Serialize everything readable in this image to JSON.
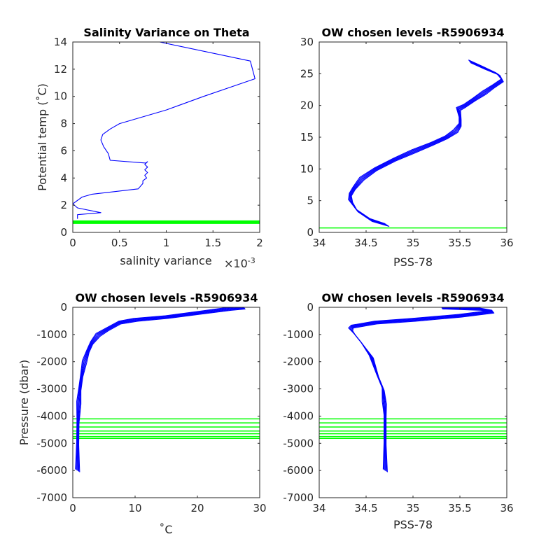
{
  "chart_data": [
    {
      "type": "line",
      "title": "Salinity Variance on Theta",
      "xlabel": "salinity variance",
      "xlabel_multiplier": "×10",
      "xlabel_multiplier_exp": "-3",
      "ylabel": "Potential temp (˚C)",
      "xlim": [
        0,
        2
      ],
      "ylim": [
        0,
        14
      ],
      "xticks": [
        "0",
        "0.5",
        "1",
        "1.5",
        "2"
      ],
      "yticks": [
        "0",
        "2",
        "4",
        "6",
        "8",
        "10",
        "12",
        "14"
      ],
      "line_color": "#0000ff",
      "series": [
        {
          "x": [
            0.05,
            0.05,
            0.3,
            0.05,
            0.0,
            0.1,
            0.2,
            0.45,
            0.7,
            0.75,
            0.75,
            0.79,
            0.77,
            0.8,
            0.77,
            0.8,
            0.77,
            0.8,
            0.78,
            0.4,
            0.38,
            0.33,
            0.3,
            0.32,
            0.4,
            0.5,
            1.0,
            1.4,
            1.95,
            1.9,
            0.93
          ],
          "y": [
            1.0,
            1.3,
            1.45,
            1.8,
            2.1,
            2.6,
            2.8,
            3.0,
            3.2,
            3.6,
            3.8,
            4.0,
            4.2,
            4.4,
            4.6,
            4.8,
            5.0,
            5.2,
            5.1,
            5.3,
            5.8,
            6.3,
            6.8,
            7.2,
            7.6,
            8.0,
            9.0,
            10.0,
            11.3,
            12.6,
            14.0
          ]
        }
      ],
      "hlines": [
        {
          "y": 0.75,
          "color": "#00ff00",
          "band": true
        }
      ]
    },
    {
      "type": "line",
      "title": "OW chosen levels -R5906934",
      "xlabel": "PSS-78",
      "ylabel": "",
      "xlim": [
        34,
        36
      ],
      "ylim": [
        0,
        30
      ],
      "xticks": [
        "34",
        "34.5",
        "35",
        "35.5",
        "36"
      ],
      "yticks": [
        "0",
        "5",
        "10",
        "15",
        "20",
        "25",
        "30"
      ],
      "line_color": "#0000ff",
      "series": [
        {
          "x": [
            34.72,
            34.55,
            34.4,
            34.33,
            34.33,
            34.37,
            34.45,
            34.6,
            34.8,
            35.0,
            35.2,
            35.35,
            35.45,
            35.5,
            35.5,
            35.48,
            35.55,
            35.65,
            35.75,
            35.85,
            35.95,
            35.9,
            35.75,
            35.6
          ],
          "y": [
            1.2,
            2.0,
            3.5,
            5.0,
            6.0,
            7.0,
            8.5,
            10.0,
            11.5,
            12.8,
            14.0,
            15.0,
            16.0,
            17.0,
            18.0,
            19.5,
            20.0,
            21.0,
            22.0,
            23.0,
            24.0,
            25.0,
            26.0,
            27.0
          ]
        }
      ],
      "hlines": [
        {
          "y": 0.7,
          "color": "#00ff00"
        }
      ]
    },
    {
      "type": "line",
      "title": "OW chosen levels -R5906934",
      "xlabel": "˚C",
      "ylabel": "Pressure (dbar)",
      "xlim": [
        0,
        30
      ],
      "ylim": [
        -7000,
        0
      ],
      "xticks": [
        "0",
        "10",
        "20",
        "30"
      ],
      "yticks": [
        "-7000",
        "-6000",
        "-5000",
        "-4000",
        "-3000",
        "-2000",
        "-1000",
        "0"
      ],
      "line_color": "#0000ff",
      "series": [
        {
          "x": [
            0.7,
            0.75,
            0.8,
            0.9,
            1.1,
            1.4,
            1.8,
            2.4,
            3.0,
            4.0,
            5.5,
            7.5,
            10.0,
            15.0,
            20.0,
            25.0,
            27.5
          ],
          "y": [
            -6000,
            -5000,
            -4200,
            -3500,
            -3000,
            -2500,
            -2000,
            -1600,
            -1300,
            -1000,
            -800,
            -550,
            -450,
            -350,
            -200,
            -50,
            0
          ]
        }
      ],
      "hlines": [
        {
          "y": -4100,
          "color": "#00ff00"
        },
        {
          "y": -4250,
          "color": "#00ff00"
        },
        {
          "y": -4400,
          "color": "#00ff00"
        },
        {
          "y": -4550,
          "color": "#00ff00"
        },
        {
          "y": -4650,
          "color": "#00ff00"
        },
        {
          "y": -4750,
          "color": "#00ff00"
        },
        {
          "y": -4820,
          "color": "#00ff00"
        }
      ]
    },
    {
      "type": "line",
      "title": "OW chosen levels -R5906934",
      "xlabel": "PSS-78",
      "ylabel": "",
      "xlim": [
        34,
        36
      ],
      "ylim": [
        -7000,
        0
      ],
      "xticks": [
        "34",
        "34.5",
        "35",
        "35.5",
        "36"
      ],
      "yticks": [
        "-7000",
        "-6000",
        "-5000",
        "-4000",
        "-3000",
        "-2000",
        "-1000",
        "0"
      ],
      "line_color": "#0000ff",
      "series": [
        {
          "x": [
            34.7,
            34.7,
            34.7,
            34.69,
            34.68,
            34.62,
            34.55,
            34.45,
            34.38,
            34.33,
            34.35,
            34.6,
            35.0,
            35.5,
            35.85,
            35.7,
            35.3
          ],
          "y": [
            -6000,
            -5000,
            -4000,
            -3500,
            -3000,
            -2500,
            -1800,
            -1300,
            -1000,
            -800,
            -700,
            -550,
            -450,
            -300,
            -150,
            -50,
            0
          ]
        }
      ],
      "hlines": [
        {
          "y": -4100,
          "color": "#00ff00"
        },
        {
          "y": -4250,
          "color": "#00ff00"
        },
        {
          "y": -4400,
          "color": "#00ff00"
        },
        {
          "y": -4550,
          "color": "#00ff00"
        },
        {
          "y": -4650,
          "color": "#00ff00"
        },
        {
          "y": -4750,
          "color": "#00ff00"
        },
        {
          "y": -4820,
          "color": "#00ff00"
        }
      ]
    }
  ]
}
